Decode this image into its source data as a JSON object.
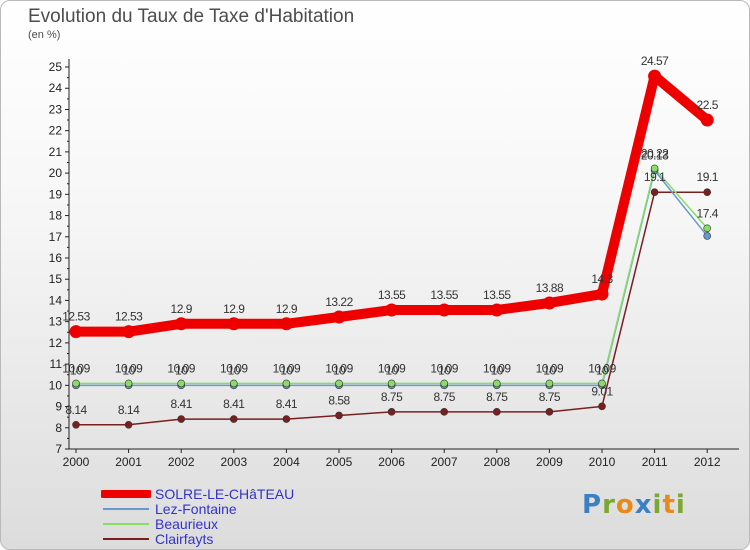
{
  "chart_data": {
    "type": "line",
    "title": "Evolution du Taux de Taxe d'Habitation",
    "ylabel": "(en %)",
    "xlabel": "",
    "ylim": [
      7,
      25
    ],
    "yticks": [
      "7",
      "8",
      "9",
      "10",
      "11",
      "12",
      "13",
      "14",
      "15",
      "16",
      "17",
      "18",
      "19",
      "20",
      "21",
      "22",
      "23",
      "24",
      "25"
    ],
    "x": [
      "2000",
      "2001",
      "2002",
      "2003",
      "2004",
      "2005",
      "2006",
      "2007",
      "2008",
      "2009",
      "2010",
      "2011",
      "2012"
    ],
    "series": [
      {
        "name": "SOLRE-LE-CHâTEAU",
        "color": "#ee0000",
        "values": [
          12.53,
          12.53,
          12.9,
          12.9,
          12.9,
          13.22,
          13.55,
          13.55,
          13.55,
          13.88,
          14.3,
          24.57,
          22.5
        ],
        "labels": [
          "12.53",
          "12.53",
          "12.9",
          "12.9",
          "12.9",
          "13.22",
          "13.55",
          "13.55",
          "13.55",
          "13.88",
          "14.3",
          "24.57",
          "22.5"
        ]
      },
      {
        "name": "Lez-Fontaine",
        "color": "#6699cc",
        "values": [
          10,
          10,
          10,
          10,
          10,
          10,
          10,
          10,
          10,
          10,
          10,
          20.13,
          17.04
        ],
        "labels": [
          "10",
          "10",
          "10",
          "10",
          "10",
          "10",
          "10",
          "10",
          "10",
          "10",
          "10",
          "20.13",
          ""
        ]
      },
      {
        "name": "Beaurieux",
        "color": "#88dd66",
        "values": [
          10.09,
          10.09,
          10.09,
          10.09,
          10.09,
          10.09,
          10.09,
          10.09,
          10.09,
          10.09,
          10.09,
          20.22,
          17.4
        ],
        "labels": [
          "10.09",
          "10.09",
          "10.09",
          "10.09",
          "10.09",
          "10.09",
          "10.09",
          "10.09",
          "10.09",
          "10.09",
          "10.09",
          "20.22",
          "17.4"
        ]
      },
      {
        "name": "Clairfayts",
        "color": "#7a1f1f",
        "values": [
          8.14,
          8.14,
          8.41,
          8.41,
          8.41,
          8.58,
          8.75,
          8.75,
          8.75,
          8.75,
          9.01,
          19.1,
          19.1
        ],
        "labels": [
          "8.14",
          "8.14",
          "8.41",
          "8.41",
          "8.41",
          "8.58",
          "8.75",
          "8.75",
          "8.75",
          "8.75",
          "9.01",
          "19.1",
          "19.1"
        ]
      }
    ],
    "legend": [
      "SOLRE-LE-CHâTEAU",
      "Lez-Fontaine",
      "Beaurieux",
      "Clairfayts"
    ],
    "legend_position": "bottom-left",
    "grid": false
  },
  "branding": {
    "logo_letters": [
      "P",
      "r",
      "o",
      "x",
      "i",
      "t",
      "i"
    ],
    "logo_colors": [
      "#3b7fc4",
      "#7aa832",
      "#e88a1a",
      "#3b7fc4",
      "#7aa832",
      "#e88a1a",
      "#7aa832"
    ]
  }
}
